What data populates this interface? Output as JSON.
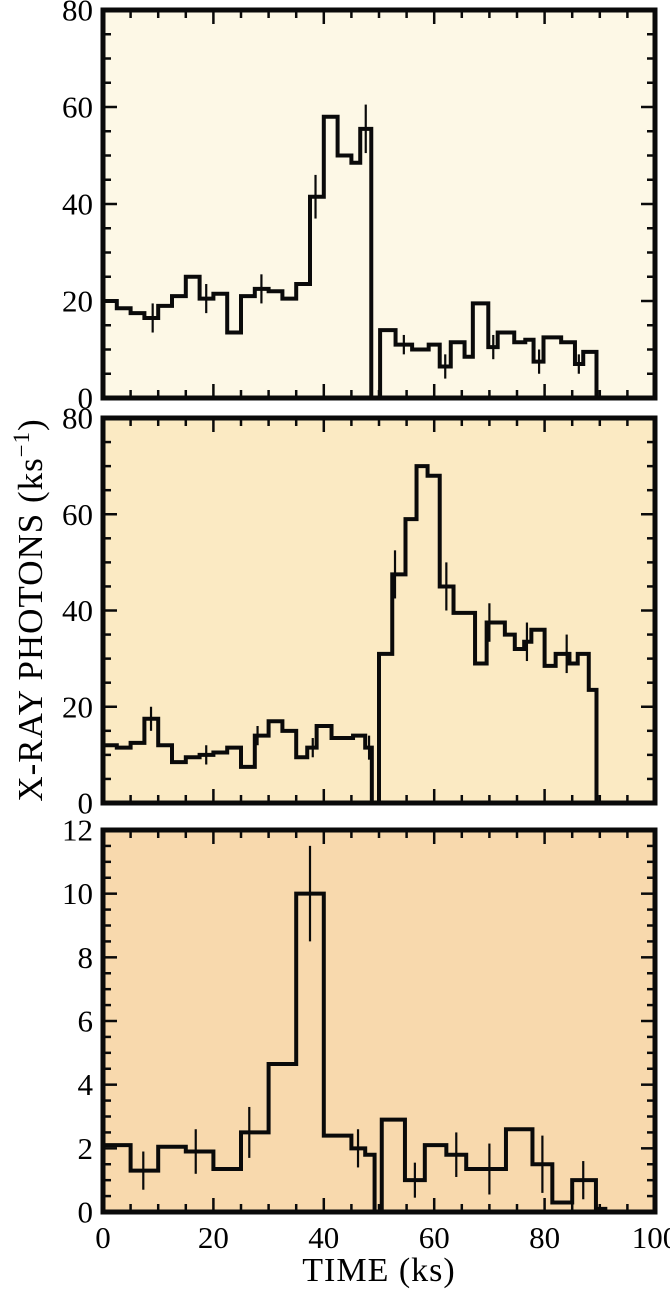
{
  "figure": {
    "xlabel": "TIME (ks)",
    "ylabel_prefix": "X-RAY PHOTONS (ks",
    "ylabel_superscript": "−1",
    "ylabel_suffix": ")",
    "line_color": "#0a0a0a",
    "text_color": "#000000",
    "page_background": "#ffffff"
  },
  "chart_data": [
    {
      "panel": "top",
      "type": "step-histogram",
      "bg_color": "#fdf8e6",
      "xlim": [
        0,
        100
      ],
      "ylim": [
        0,
        80
      ],
      "xticks_major": [
        0,
        20,
        40,
        60,
        80,
        100
      ],
      "xticks_minor_step": 5,
      "yticks_major": [
        0,
        20,
        40,
        60,
        80
      ],
      "ytick_labels": [
        "0",
        "20",
        "40",
        "60",
        "80"
      ],
      "yticks_minor_step": 5,
      "show_xtick_labels": false,
      "bins": [
        [
          0,
          2.5,
          20
        ],
        [
          2.5,
          5,
          18.5
        ],
        [
          5,
          7.5,
          17.5
        ],
        [
          7.5,
          10,
          16.5
        ],
        [
          10,
          12.5,
          19
        ],
        [
          12.5,
          15,
          21
        ],
        [
          15,
          17.5,
          25
        ],
        [
          17.5,
          20,
          20.5
        ],
        [
          20,
          22.5,
          21.5
        ],
        [
          22.5,
          25,
          13.5
        ],
        [
          25,
          27.5,
          21
        ],
        [
          27.5,
          30,
          22.5
        ],
        [
          30,
          32.5,
          22
        ],
        [
          32.5,
          35,
          20.5
        ],
        [
          35,
          37.5,
          23.5
        ],
        [
          37.5,
          40,
          41.5
        ],
        [
          40,
          42.5,
          58
        ],
        [
          42.5,
          45,
          50
        ],
        [
          45,
          46.6,
          48.5
        ],
        [
          46.6,
          48.6,
          55.5
        ],
        [
          48.6,
          50.2,
          0
        ],
        [
          50.2,
          53,
          14
        ],
        [
          53,
          56,
          11
        ],
        [
          56,
          59,
          10
        ],
        [
          59,
          61,
          11
        ],
        [
          61,
          63,
          6.5
        ],
        [
          63,
          65.5,
          11.5
        ],
        [
          65.5,
          67,
          8.5
        ],
        [
          67,
          69.8,
          19.5
        ],
        [
          69.8,
          71.5,
          10.5
        ],
        [
          71.5,
          74.5,
          13.5
        ],
        [
          74.5,
          76.5,
          11.5
        ],
        [
          76.5,
          78,
          12
        ],
        [
          78,
          79.8,
          7.5
        ],
        [
          79.8,
          83,
          12.5
        ],
        [
          83,
          85.5,
          11.5
        ],
        [
          85.5,
          87,
          7
        ],
        [
          87,
          89.4,
          9.5
        ],
        [
          89.4,
          100,
          0
        ]
      ],
      "errors": [
        [
          9,
          16.5,
          3
        ],
        [
          18.7,
          20.5,
          3
        ],
        [
          28.7,
          22.5,
          3
        ],
        [
          38.5,
          41.5,
          4.5
        ],
        [
          47.6,
          55.5,
          5
        ],
        [
          54.5,
          11,
          2
        ],
        [
          62,
          6.5,
          2.5
        ],
        [
          70.7,
          10.5,
          2.5
        ],
        [
          79,
          7.5,
          2.5
        ],
        [
          86.2,
          7,
          2
        ]
      ]
    },
    {
      "panel": "middle",
      "type": "step-histogram",
      "bg_color": "#fbeac3",
      "xlim": [
        0,
        100
      ],
      "ylim": [
        0,
        80
      ],
      "xticks_major": [
        0,
        20,
        40,
        60,
        80,
        100
      ],
      "xticks_minor_step": 5,
      "yticks_major": [
        0,
        20,
        40,
        60,
        80
      ],
      "ytick_labels": [
        "0",
        "20",
        "40",
        "60",
        "80"
      ],
      "yticks_minor_step": 5,
      "show_xtick_labels": false,
      "bins": [
        [
          0,
          2.5,
          12
        ],
        [
          2.5,
          5,
          11.5
        ],
        [
          5,
          7.5,
          12.5
        ],
        [
          7.5,
          10,
          17.5
        ],
        [
          10,
          12.5,
          12
        ],
        [
          12.5,
          15,
          8.5
        ],
        [
          15,
          17.5,
          9.5
        ],
        [
          17.5,
          20,
          10
        ],
        [
          20,
          22.5,
          10.5
        ],
        [
          22.5,
          25,
          11.5
        ],
        [
          25,
          27.5,
          7.5
        ],
        [
          27.5,
          30,
          14
        ],
        [
          30,
          32.5,
          17
        ],
        [
          32.5,
          35,
          15
        ],
        [
          35,
          37,
          9.5
        ],
        [
          37,
          38.7,
          11.5
        ],
        [
          38.7,
          41.4,
          16
        ],
        [
          41.4,
          45.3,
          13.5
        ],
        [
          45.3,
          47.5,
          14
        ],
        [
          47.5,
          48.7,
          11.5
        ],
        [
          48.7,
          50,
          0
        ],
        [
          50,
          52.4,
          31
        ],
        [
          52.4,
          54.8,
          47.5
        ],
        [
          54.8,
          56.8,
          59
        ],
        [
          56.8,
          58.8,
          70
        ],
        [
          58.8,
          61,
          68
        ],
        [
          61,
          63.5,
          45
        ],
        [
          63.5,
          67.4,
          39.5
        ],
        [
          67.4,
          69.5,
          29
        ],
        [
          69.5,
          72.8,
          37.5
        ],
        [
          72.8,
          74.6,
          35
        ],
        [
          74.6,
          76.3,
          32
        ],
        [
          76.3,
          77.6,
          33.5
        ],
        [
          77.6,
          80,
          36
        ],
        [
          80,
          82,
          28.5
        ],
        [
          82,
          84.5,
          31
        ],
        [
          84.5,
          86,
          29
        ],
        [
          86,
          88,
          31
        ],
        [
          88,
          89.4,
          23.5
        ],
        [
          89.4,
          100,
          0
        ]
      ],
      "errors": [
        [
          8.7,
          17.5,
          2.5
        ],
        [
          18.7,
          10,
          2
        ],
        [
          28,
          14,
          2
        ],
        [
          38,
          11.5,
          2
        ],
        [
          48.2,
          11.5,
          2.5
        ],
        [
          52.9,
          47.5,
          5
        ],
        [
          62.2,
          45,
          5
        ],
        [
          70,
          37.5,
          4
        ],
        [
          76.8,
          33.5,
          4
        ],
        [
          84,
          31,
          4
        ]
      ]
    },
    {
      "panel": "bottom",
      "type": "step-histogram",
      "bg_color": "#f8d9ad",
      "xlim": [
        0,
        100
      ],
      "ylim": [
        0,
        12
      ],
      "xticks_major": [
        0,
        20,
        40,
        60,
        80,
        100
      ],
      "xtick_labels": [
        "0",
        "20",
        "40",
        "60",
        "80",
        "100"
      ],
      "xticks_minor_step": 5,
      "yticks_major": [
        0,
        2,
        4,
        6,
        8,
        10,
        12
      ],
      "ytick_labels": [
        "0",
        "2",
        "4",
        "6",
        "8",
        "10",
        "12"
      ],
      "yticks_minor_step": 0.5,
      "show_xtick_labels": true,
      "bins": [
        [
          0,
          5,
          2.1
        ],
        [
          5,
          10,
          1.3
        ],
        [
          10,
          15,
          2.05
        ],
        [
          15,
          20,
          1.9
        ],
        [
          20,
          25,
          1.35
        ],
        [
          25,
          30,
          2.5
        ],
        [
          30,
          35,
          4.65
        ],
        [
          35,
          40,
          10
        ],
        [
          40,
          45,
          2.4
        ],
        [
          45,
          47.5,
          2
        ],
        [
          47.5,
          49.2,
          1.8
        ],
        [
          49.2,
          50.5,
          0
        ],
        [
          50.5,
          54.7,
          2.9
        ],
        [
          54.7,
          58.3,
          1
        ],
        [
          58.3,
          62.2,
          2.1
        ],
        [
          62.2,
          65.8,
          1.8
        ],
        [
          65.8,
          73,
          1.35
        ],
        [
          73,
          77.8,
          2.6
        ],
        [
          77.8,
          81.4,
          1.5
        ],
        [
          81.4,
          85,
          0.3
        ],
        [
          85,
          89.3,
          1
        ],
        [
          89.3,
          91,
          0.1
        ],
        [
          91,
          100,
          0
        ]
      ],
      "errors": [
        [
          7.3,
          1.3,
          0.6
        ],
        [
          16.8,
          1.9,
          0.7
        ],
        [
          26.5,
          2.5,
          0.8
        ],
        [
          37.5,
          10,
          1.5
        ],
        [
          46.2,
          2,
          0.6
        ],
        [
          56.5,
          1,
          0.55
        ],
        [
          64,
          1.8,
          0.7
        ],
        [
          70,
          1.35,
          0.8
        ],
        [
          79.6,
          1.5,
          0.9
        ],
        [
          87,
          1,
          0.6
        ]
      ]
    }
  ]
}
